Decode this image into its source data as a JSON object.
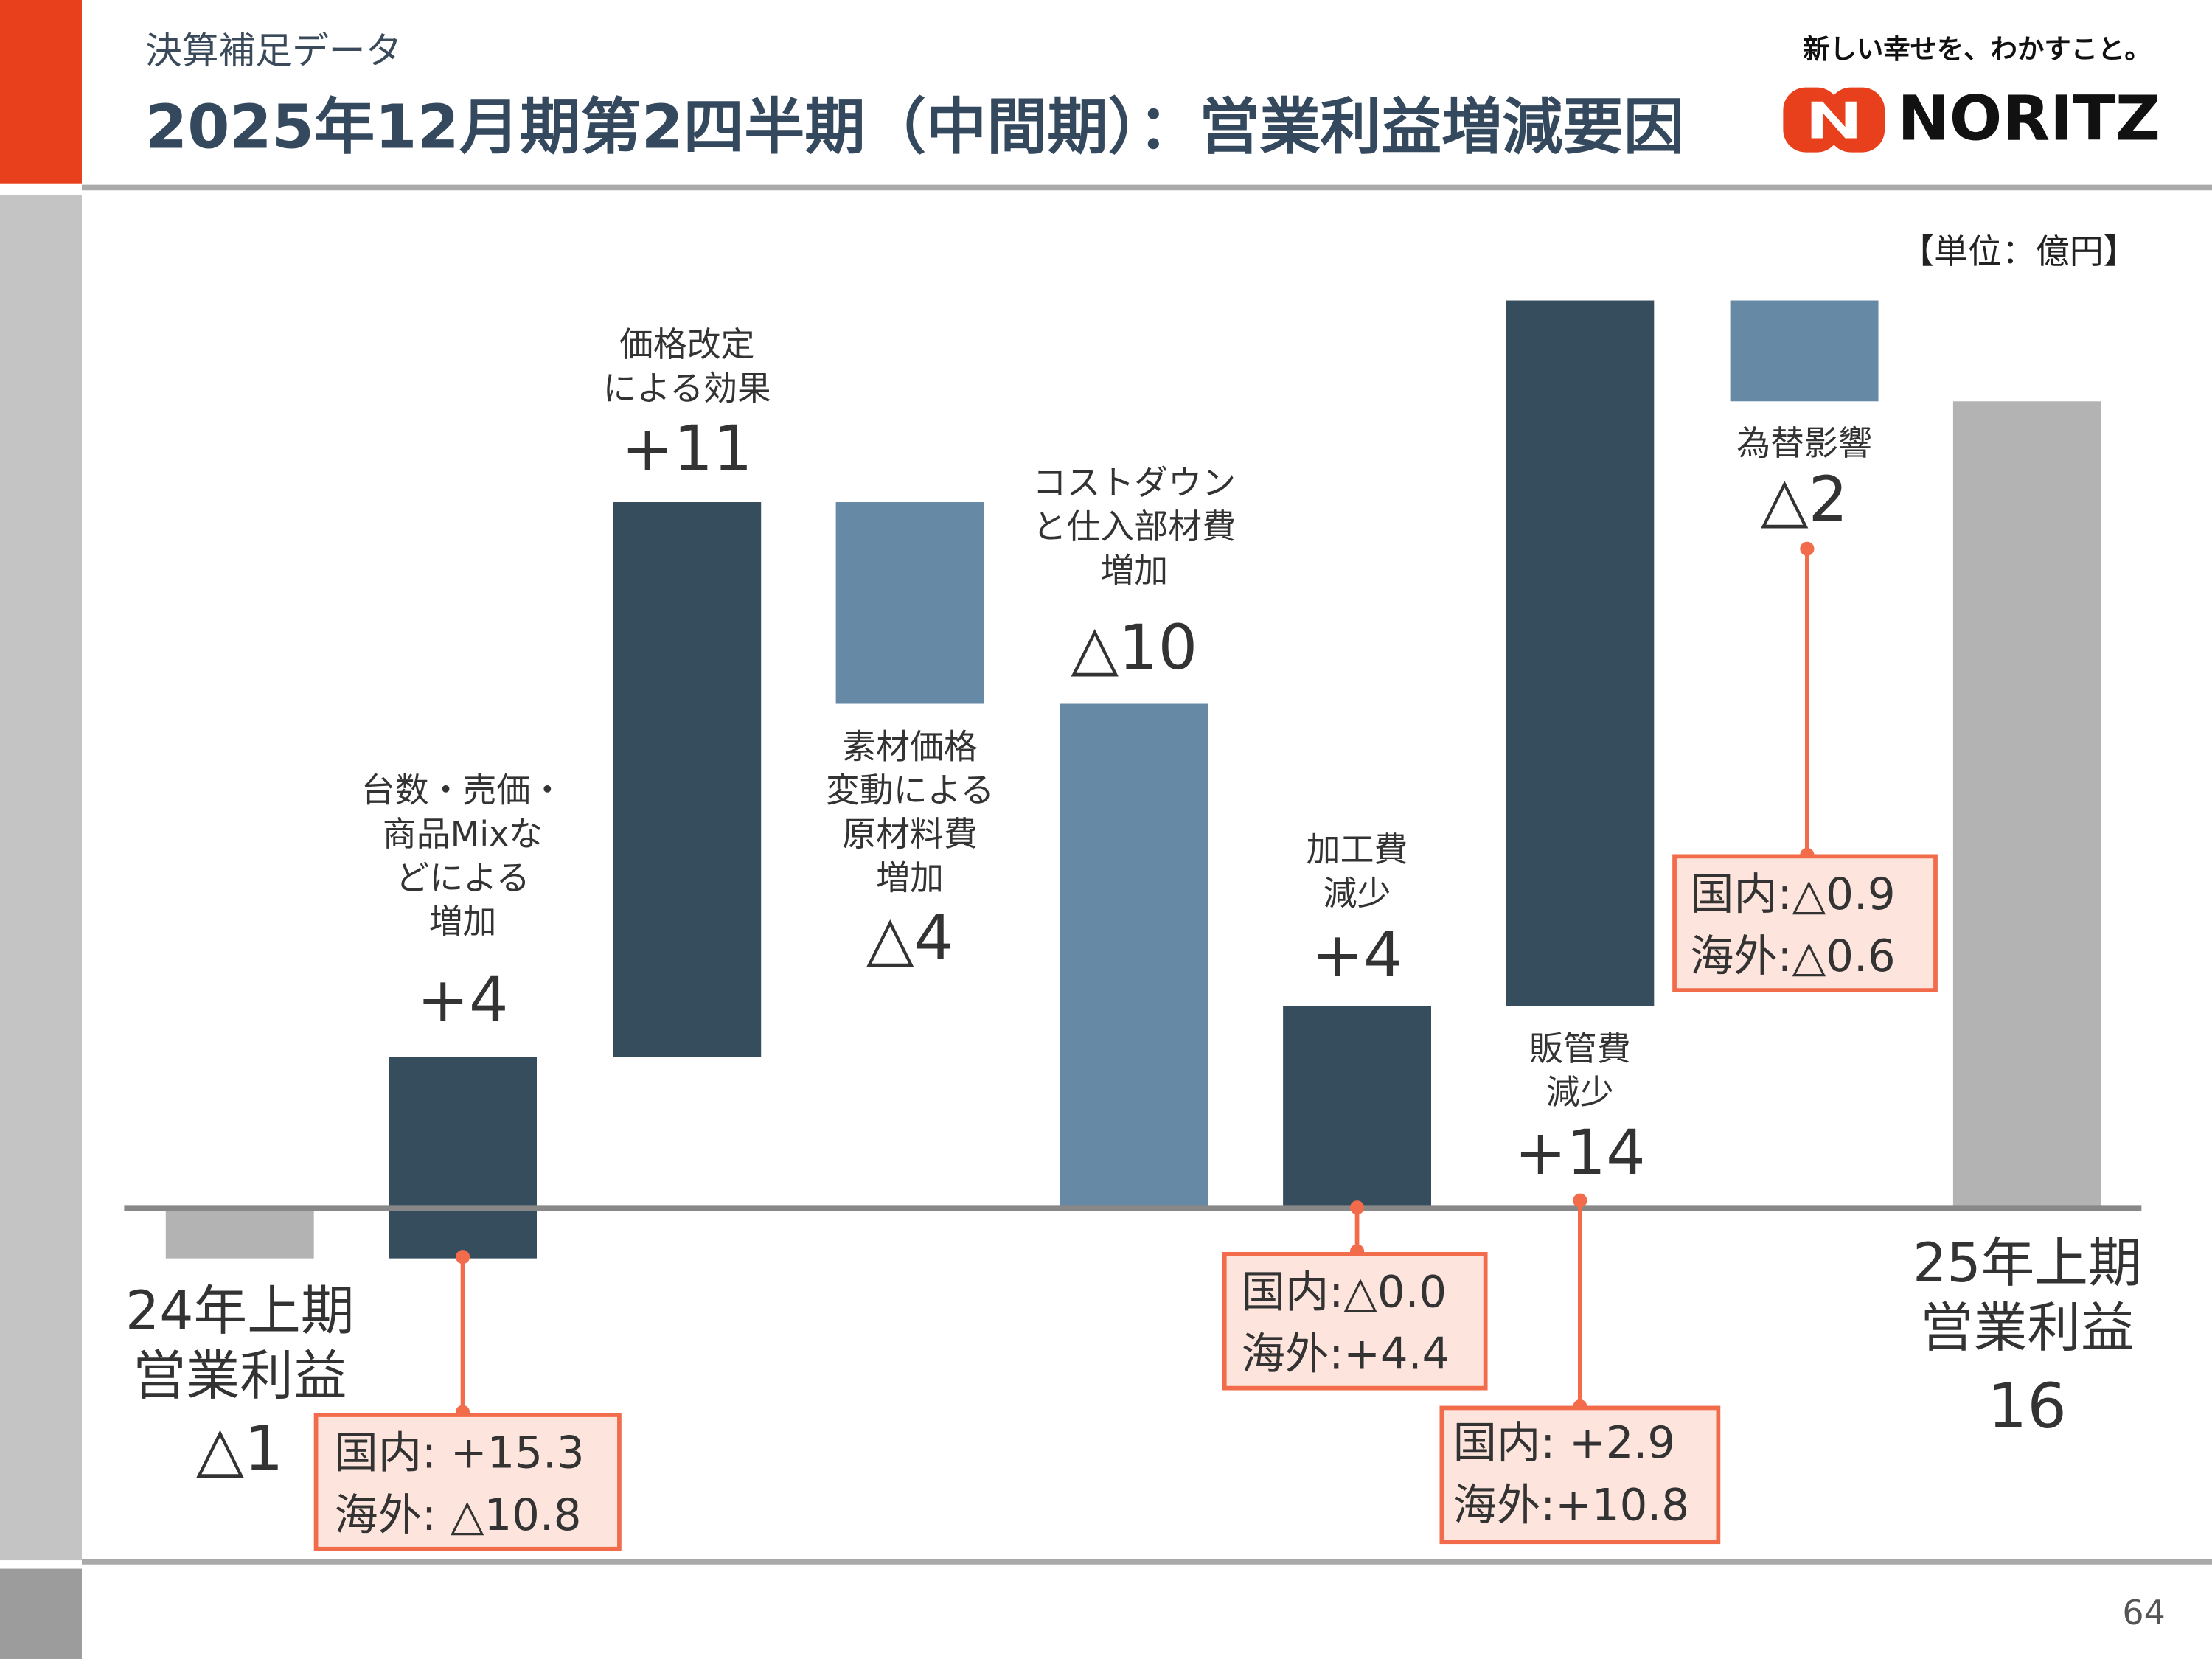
{
  "header": {
    "subtitle": "決算補足データ",
    "title": "2025年12月期第2四半期（中間期）：営業利益増減要因"
  },
  "logo": {
    "tagline": "新しい幸せを、わかすこと。",
    "name": "NORITZ"
  },
  "page_number": "64",
  "chart_data": {
    "type": "waterfall",
    "unit": "【単位：億円】",
    "categories": [
      [
        "24年上期",
        "営業利益"
      ],
      [
        "台数・売価・",
        "商品Mixな",
        "どによる",
        "増加"
      ],
      [
        "価格改定",
        "による効果"
      ],
      [
        "素材価格",
        "変動による",
        "原材料費",
        "増加"
      ],
      [
        "コストダウン",
        "と仕入部材費",
        "増加"
      ],
      [
        "加工費",
        "減少"
      ],
      [
        "販管費",
        "減少"
      ],
      [
        "為替影響"
      ],
      [
        "25年上期",
        "営業利益"
      ]
    ],
    "values": [
      -1,
      4,
      11,
      -4,
      -10,
      4,
      14,
      -2,
      16
    ],
    "value_labels": [
      "△1",
      "+4",
      "+11",
      "△4",
      "△10",
      "+4",
      "+14",
      "△2",
      "16"
    ],
    "breakdowns": [
      null,
      [
        "国内: +15.3",
        "海外: △10.8"
      ],
      null,
      null,
      null,
      [
        "国内:△0.0",
        "海外:+4.4"
      ],
      [
        "国内:  +2.9",
        "海外:+10.8"
      ],
      [
        "国内:△0.9",
        "海外:△0.6"
      ],
      null
    ],
    "colors": {
      "total": "#b3b3b3",
      "increase": "#364d5e",
      "decrease": "#6689a6"
    }
  }
}
